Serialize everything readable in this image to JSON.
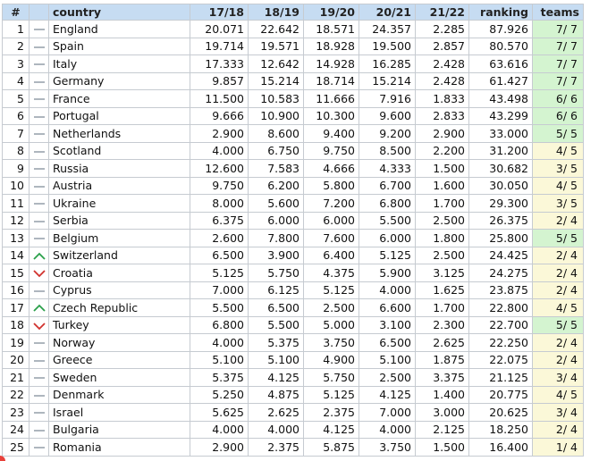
{
  "headers": [
    "#",
    "",
    "country",
    "17/18",
    "18/19",
    "19/20",
    "20/21",
    "21/22",
    "ranking",
    "teams"
  ],
  "colors": {
    "header_bg": "#c6dcf2",
    "teams_green": "#d4f4d0",
    "teams_yellow": "#fbf8d8",
    "up_icon": "#2aa04a",
    "down_icon": "#d0312d",
    "same_icon": "#9aa3ad"
  },
  "rows": [
    {
      "n": "1",
      "move": "same",
      "country": "England",
      "v": [
        "20.071",
        "22.642",
        "18.571",
        "24.357",
        "2.285"
      ],
      "ranking": "87.926",
      "teams": "7/ 7",
      "tc": "green"
    },
    {
      "n": "2",
      "move": "same",
      "country": "Spain",
      "v": [
        "19.714",
        "19.571",
        "18.928",
        "19.500",
        "2.857"
      ],
      "ranking": "80.570",
      "teams": "7/ 7",
      "tc": "green"
    },
    {
      "n": "3",
      "move": "same",
      "country": "Italy",
      "v": [
        "17.333",
        "12.642",
        "14.928",
        "16.285",
        "2.428"
      ],
      "ranking": "63.616",
      "teams": "7/ 7",
      "tc": "green"
    },
    {
      "n": "4",
      "move": "same",
      "country": "Germany",
      "v": [
        "9.857",
        "15.214",
        "18.714",
        "15.214",
        "2.428"
      ],
      "ranking": "61.427",
      "teams": "7/ 7",
      "tc": "green"
    },
    {
      "n": "5",
      "move": "same",
      "country": "France",
      "v": [
        "11.500",
        "10.583",
        "11.666",
        "7.916",
        "1.833"
      ],
      "ranking": "43.498",
      "teams": "6/ 6",
      "tc": "green"
    },
    {
      "n": "6",
      "move": "same",
      "country": "Portugal",
      "v": [
        "9.666",
        "10.900",
        "10.300",
        "9.600",
        "2.833"
      ],
      "ranking": "43.299",
      "teams": "6/ 6",
      "tc": "green"
    },
    {
      "n": "7",
      "move": "same",
      "country": "Netherlands",
      "v": [
        "2.900",
        "8.600",
        "9.400",
        "9.200",
        "2.900"
      ],
      "ranking": "33.000",
      "teams": "5/ 5",
      "tc": "green"
    },
    {
      "n": "8",
      "move": "same",
      "country": "Scotland",
      "v": [
        "4.000",
        "6.750",
        "9.750",
        "8.500",
        "2.200"
      ],
      "ranking": "31.200",
      "teams": "4/ 5",
      "tc": "yellow"
    },
    {
      "n": "9",
      "move": "same",
      "country": "Russia",
      "v": [
        "12.600",
        "7.583",
        "4.666",
        "4.333",
        "1.500"
      ],
      "ranking": "30.682",
      "teams": "3/ 5",
      "tc": "yellow"
    },
    {
      "n": "10",
      "move": "same",
      "country": "Austria",
      "v": [
        "9.750",
        "6.200",
        "5.800",
        "6.700",
        "1.600"
      ],
      "ranking": "30.050",
      "teams": "4/ 5",
      "tc": "yellow"
    },
    {
      "n": "11",
      "move": "same",
      "country": "Ukraine",
      "v": [
        "8.000",
        "5.600",
        "7.200",
        "6.800",
        "1.700"
      ],
      "ranking": "29.300",
      "teams": "3/ 5",
      "tc": "yellow"
    },
    {
      "n": "12",
      "move": "same",
      "country": "Serbia",
      "v": [
        "6.375",
        "6.000",
        "6.000",
        "5.500",
        "2.500"
      ],
      "ranking": "26.375",
      "teams": "2/ 4",
      "tc": "yellow"
    },
    {
      "n": "13",
      "move": "same",
      "country": "Belgium",
      "v": [
        "2.600",
        "7.800",
        "7.600",
        "6.000",
        "1.800"
      ],
      "ranking": "25.800",
      "teams": "5/ 5",
      "tc": "green"
    },
    {
      "n": "14",
      "move": "up",
      "country": "Switzerland",
      "v": [
        "6.500",
        "3.900",
        "6.400",
        "5.125",
        "2.500"
      ],
      "ranking": "24.425",
      "teams": "2/ 4",
      "tc": "yellow"
    },
    {
      "n": "15",
      "move": "down",
      "country": "Croatia",
      "v": [
        "5.125",
        "5.750",
        "4.375",
        "5.900",
        "3.125"
      ],
      "ranking": "24.275",
      "teams": "2/ 4",
      "tc": "yellow"
    },
    {
      "n": "16",
      "move": "same",
      "country": "Cyprus",
      "v": [
        "7.000",
        "6.125",
        "5.125",
        "4.000",
        "1.625"
      ],
      "ranking": "23.875",
      "teams": "2/ 4",
      "tc": "yellow"
    },
    {
      "n": "17",
      "move": "up",
      "country": "Czech Republic",
      "v": [
        "5.500",
        "6.500",
        "2.500",
        "6.600",
        "1.700"
      ],
      "ranking": "22.800",
      "teams": "4/ 5",
      "tc": "yellow"
    },
    {
      "n": "18",
      "move": "down",
      "country": "Turkey",
      "v": [
        "6.800",
        "5.500",
        "5.000",
        "3.100",
        "2.300"
      ],
      "ranking": "22.700",
      "teams": "5/ 5",
      "tc": "green"
    },
    {
      "n": "19",
      "move": "same",
      "country": "Norway",
      "v": [
        "4.000",
        "5.375",
        "3.750",
        "6.500",
        "2.625"
      ],
      "ranking": "22.250",
      "teams": "2/ 4",
      "tc": "yellow"
    },
    {
      "n": "20",
      "move": "same",
      "country": "Greece",
      "v": [
        "5.100",
        "5.100",
        "4.900",
        "5.100",
        "1.875"
      ],
      "ranking": "22.075",
      "teams": "2/ 4",
      "tc": "yellow"
    },
    {
      "n": "21",
      "move": "same",
      "country": "Sweden",
      "v": [
        "5.375",
        "4.125",
        "5.750",
        "2.500",
        "3.375"
      ],
      "ranking": "21.125",
      "teams": "3/ 4",
      "tc": "yellow"
    },
    {
      "n": "22",
      "move": "same",
      "country": "Denmark",
      "v": [
        "5.250",
        "4.875",
        "5.125",
        "4.125",
        "1.400"
      ],
      "ranking": "20.775",
      "teams": "4/ 5",
      "tc": "yellow"
    },
    {
      "n": "23",
      "move": "same",
      "country": "Israel",
      "v": [
        "5.625",
        "2.625",
        "2.375",
        "7.000",
        "3.000"
      ],
      "ranking": "20.625",
      "teams": "3/ 4",
      "tc": "yellow"
    },
    {
      "n": "24",
      "move": "same",
      "country": "Bulgaria",
      "v": [
        "4.000",
        "4.000",
        "4.125",
        "4.000",
        "2.125"
      ],
      "ranking": "18.250",
      "teams": "2/ 4",
      "tc": "yellow"
    },
    {
      "n": "25",
      "move": "same",
      "country": "Romania",
      "v": [
        "2.900",
        "2.375",
        "5.875",
        "3.750",
        "1.500"
      ],
      "ranking": "16.400",
      "teams": "1/ 4",
      "tc": "yellow"
    }
  ]
}
